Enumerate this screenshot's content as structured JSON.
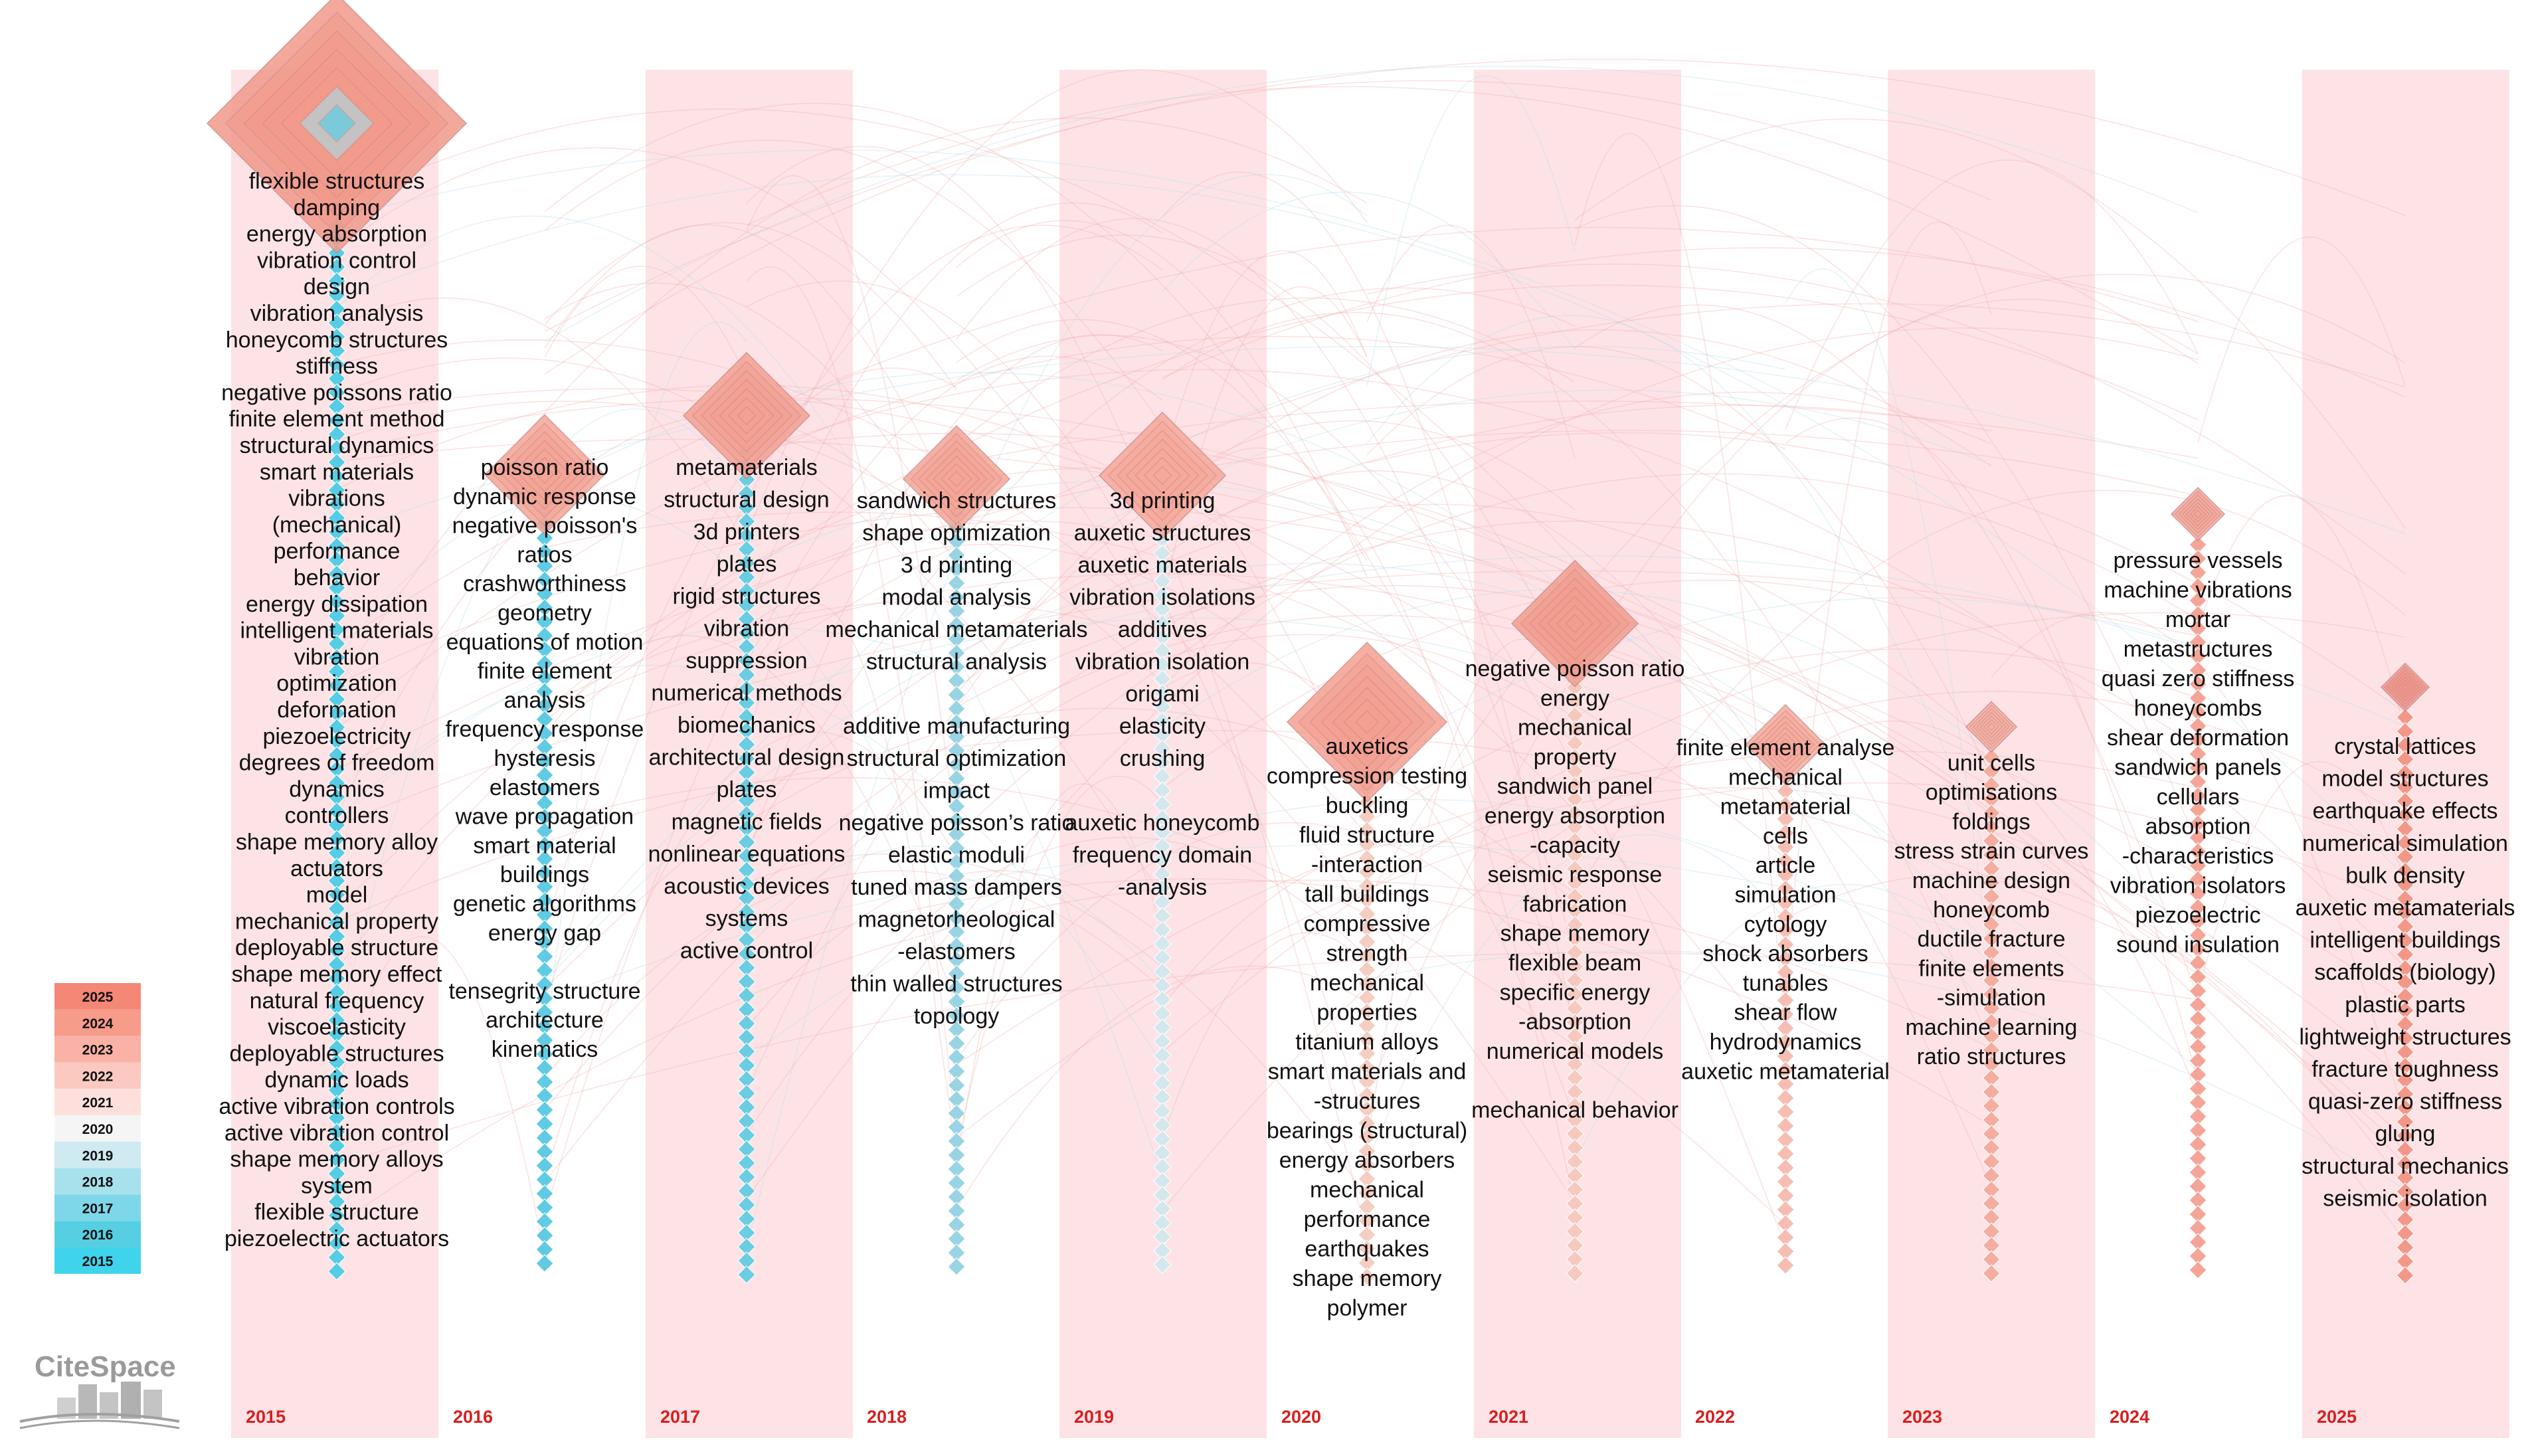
{
  "colors": {
    "band": "#fde3e6",
    "year_label": "#d61f1f",
    "node_stroke": "#c98a8a",
    "year_scale": [
      "#3fd4ec",
      "#56cfe3",
      "#7ed7e8",
      "#a7e1ec",
      "#cfeaf1",
      "#f5f5f5",
      "#fde0dc",
      "#fbc9c0",
      "#f9b2a5",
      "#f79b8b",
      "#f48775"
    ]
  },
  "legend": [
    "2025",
    "2024",
    "2023",
    "2022",
    "2021",
    "2020",
    "2019",
    "2018",
    "2017",
    "2016",
    "2015"
  ],
  "logo_text": "CiteSpace",
  "years": [
    {
      "year": "2015",
      "keywords": [
        "flexible structures",
        "damping",
        "energy absorption",
        "vibration control",
        "design",
        "vibration analysis",
        "honeycomb structures",
        "stiffness",
        "negative poissons ratio",
        "finite element method",
        "structural dynamics",
        "smart materials",
        "vibrations",
        "(mechanical)",
        "performance",
        "behavior",
        "energy dissipation",
        "intelligent materials",
        "vibration",
        "optimization",
        "deformation",
        "piezoelectricity",
        "degrees of freedom",
        "dynamics",
        "controllers",
        "shape memory alloy",
        "actuators",
        "model",
        "mechanical property",
        "deployable structure",
        "shape memory effect",
        "natural frequency",
        "viscoelasticity",
        "deployable structures",
        "dynamic loads",
        "active vibration controls",
        "active vibration control",
        "shape memory alloys",
        "system",
        "flexible structure",
        "piezoelectric actuators"
      ]
    },
    {
      "year": "2016",
      "keywords": [
        "poisson ratio",
        "dynamic response",
        "negative poisson's",
        "ratios",
        "crashworthiness",
        "geometry",
        "equations of motion",
        "finite element",
        "analysis",
        "frequency response",
        "hysteresis",
        "elastomers",
        "wave propagation",
        "smart material",
        "buildings",
        "genetic algorithms",
        "energy gap",
        "",
        "tensegrity structure",
        "architecture",
        "kinematics"
      ]
    },
    {
      "year": "2017",
      "keywords": [
        "metamaterials",
        "structural design",
        "3d printers",
        "plates",
        "rigid structures",
        "vibration",
        "suppression",
        "numerical methods",
        "biomechanics",
        "architectural design",
        "plates",
        "magnetic fields",
        "nonlinear equations",
        "acoustic devices",
        "systems",
        "active control"
      ]
    },
    {
      "year": "2018",
      "keywords": [
        "sandwich structures",
        "shape optimization",
        "3 d printing",
        "modal analysis",
        "mechanical metamaterials",
        "structural analysis",
        "",
        "additive manufacturing",
        "structural optimization",
        "impact",
        "negative poisson’s ratio",
        "elastic moduli",
        "tuned mass dampers",
        "magnetorheological",
        "-elastomers",
        "thin walled structures",
        "topology"
      ]
    },
    {
      "year": "2019",
      "keywords": [
        "3d printing",
        "auxetic structures",
        "auxetic materials",
        "vibration isolations",
        "additives",
        "vibration isolation",
        "origami",
        "elasticity",
        "crushing",
        "",
        "auxetic honeycomb",
        "frequency domain",
        "-analysis"
      ]
    },
    {
      "year": "2020",
      "keywords": [
        "auxetics",
        "compression testing",
        "buckling",
        "fluid structure",
        "-interaction",
        "tall buildings",
        "compressive",
        "strength",
        "mechanical",
        "properties",
        "titanium alloys",
        "smart materials and",
        "-structures",
        "bearings (structural)",
        "energy absorbers",
        "mechanical",
        "performance",
        "earthquakes",
        "shape memory",
        "polymer"
      ]
    },
    {
      "year": "2021",
      "keywords": [
        "negative poisson ratio",
        "energy",
        "mechanical",
        "property",
        "sandwich panel",
        "energy absorption",
        "-capacity",
        "seismic response",
        "fabrication",
        "shape memory",
        "flexible beam",
        "specific energy",
        "-absorption",
        "numerical models",
        "",
        "mechanical behavior"
      ]
    },
    {
      "year": "2022",
      "keywords": [
        "finite element analyse",
        "mechanical",
        "metamaterial",
        "cells",
        "article",
        "simulation",
        "cytology",
        "shock absorbers",
        "tunables",
        "shear flow",
        "hydrodynamics",
        "auxetic metamaterial"
      ]
    },
    {
      "year": "2023",
      "keywords": [
        "unit cells",
        "optimisations",
        "foldings",
        "stress strain curves",
        "machine design",
        "honeycomb",
        "ductile fracture",
        "finite elements",
        "-simulation",
        "machine learning",
        "ratio structures"
      ]
    },
    {
      "year": "2024",
      "keywords": [
        "pressure vessels",
        "machine vibrations",
        "mortar",
        "metastructures",
        "quasi zero stiffness",
        "honeycombs",
        "shear deformation",
        "sandwich panels",
        "cellulars",
        "absorption",
        "-characteristics",
        "vibration isolators",
        "piezoelectric",
        "sound insulation"
      ]
    },
    {
      "year": "2025",
      "keywords": [
        "crystal lattices",
        "model structures",
        "earthquake effects",
        "numerical simulation",
        "bulk density",
        "auxetic metamaterials",
        "intelligent buildings",
        "scaffolds (biology)",
        "plastic parts",
        "lightweight structures",
        "fracture toughness",
        "quasi-zero stiffness",
        "gluing",
        "structural mechanics",
        "seismic isolation"
      ]
    }
  ]
}
